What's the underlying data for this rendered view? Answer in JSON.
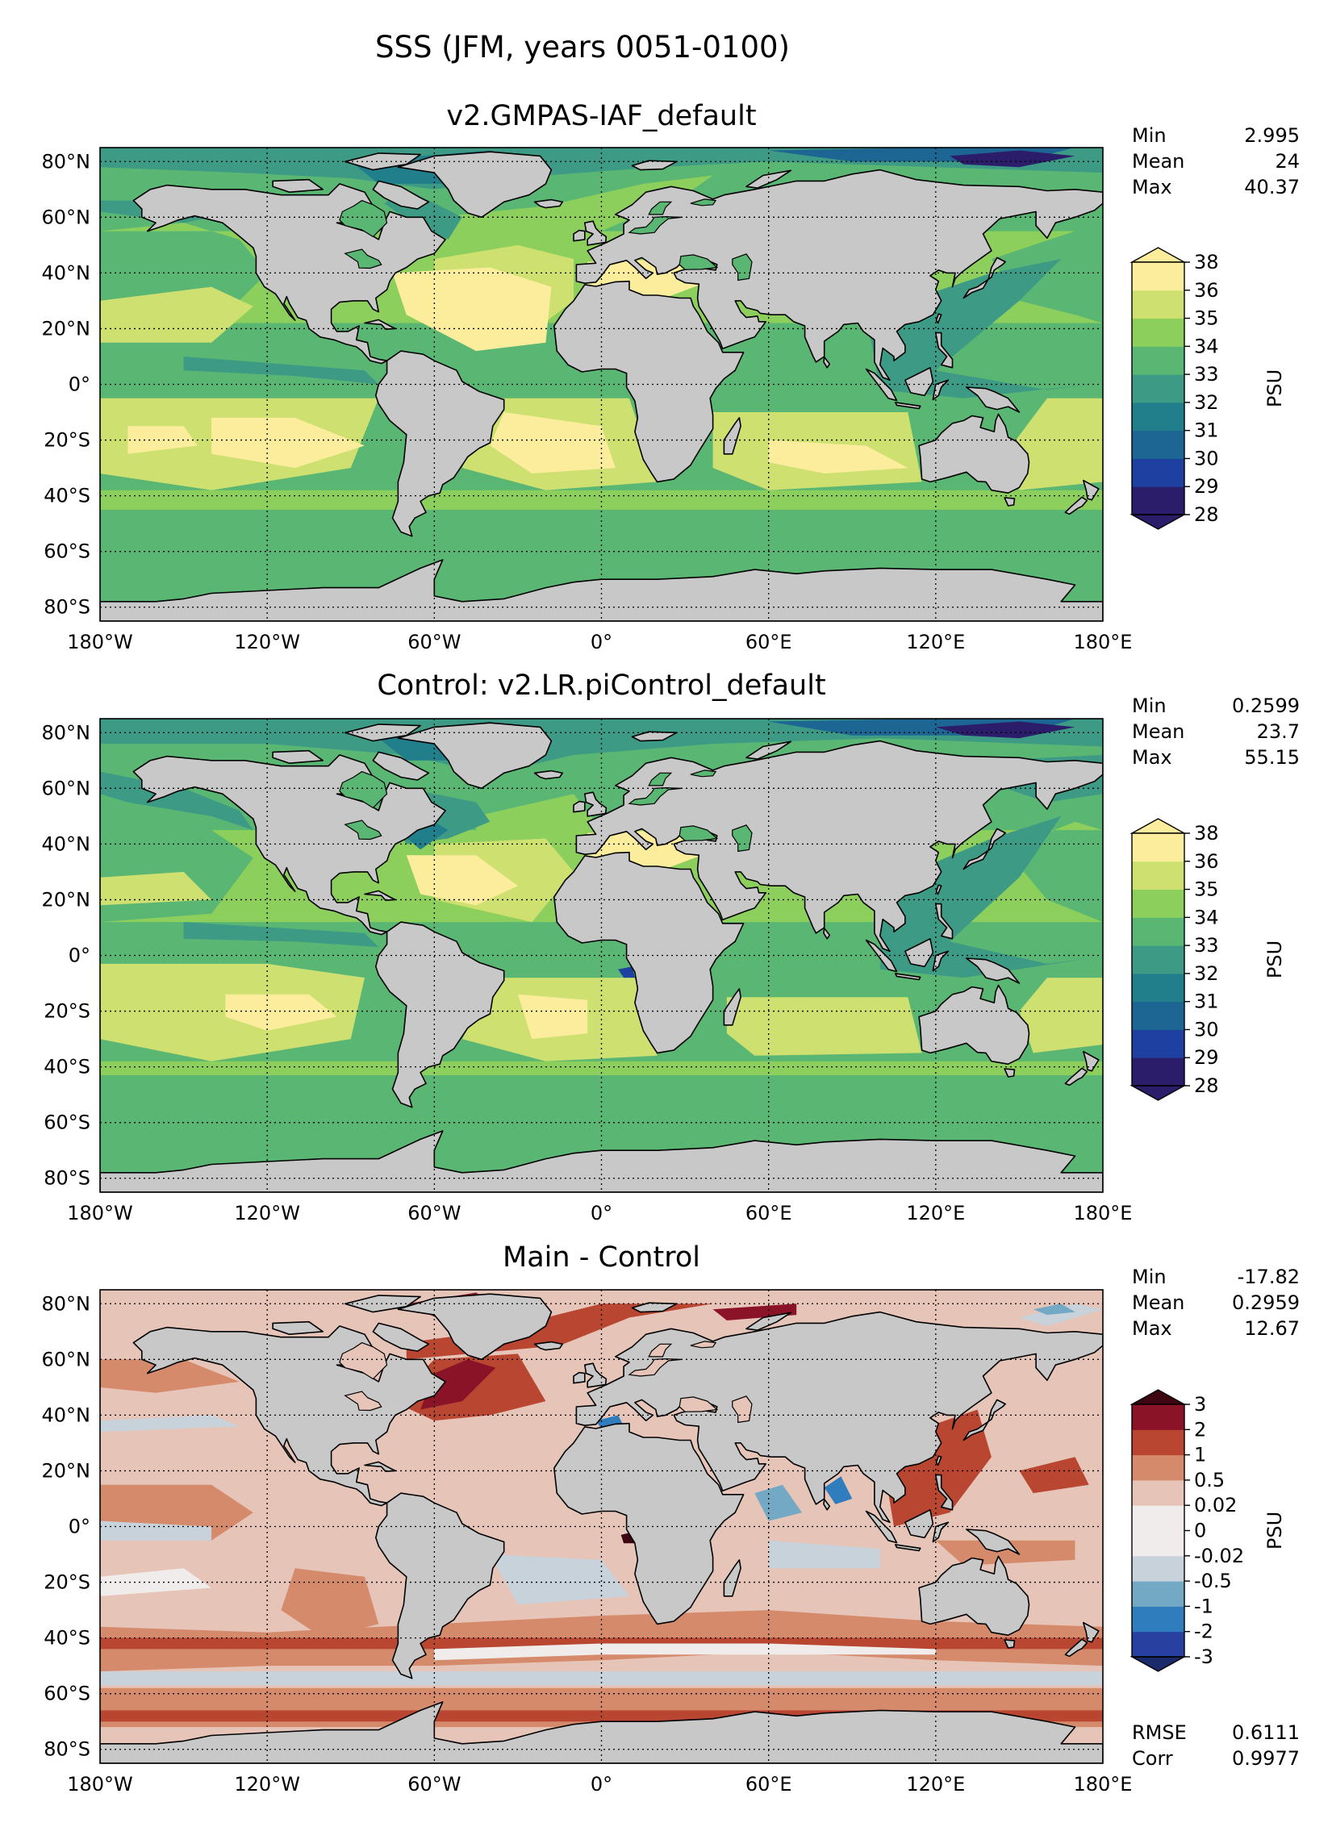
{
  "figure": {
    "suptitle": "SSS (JFM, years 0051-0100)"
  },
  "chart_data": [
    {
      "type": "heatmap",
      "title": "v2.GMPAS-IAF_default",
      "xlim": [
        -180,
        180
      ],
      "ylim": [
        -85,
        85
      ],
      "x_ticks": [
        -180,
        -120,
        -60,
        0,
        60,
        120,
        180
      ],
      "x_tick_labels": [
        "180°W",
        "120°W",
        "60°W",
        "0°",
        "60°E",
        "120°E",
        "180°E"
      ],
      "y_ticks": [
        80,
        60,
        40,
        20,
        0,
        -20,
        -40,
        -60,
        -80
      ],
      "y_tick_labels": [
        "80°N",
        "60°N",
        "40°N",
        "20°N",
        "0°",
        "20°S",
        "40°S",
        "60°S",
        "80°S"
      ],
      "grid": true,
      "stats": [
        {
          "label": "Min",
          "value": "2.995"
        },
        {
          "label": "Mean",
          "value": "24"
        },
        {
          "label": "Max",
          "value": "40.37"
        }
      ],
      "colorbar": {
        "label": "PSU",
        "ticks": [
          "28",
          "29",
          "30",
          "31",
          "32",
          "33",
          "34",
          "35",
          "36",
          "38"
        ],
        "colors": [
          "#2c1d6b",
          "#1e40a0",
          "#1d6592",
          "#217f8c",
          "#3d9a84",
          "#5ab673",
          "#8ccf5c",
          "#cde070",
          "#fbed9b"
        ],
        "extend_min_color": "#2c1d6b",
        "extend_max_color": "#fbed9b"
      }
    },
    {
      "type": "heatmap",
      "title": "Control: v2.LR.piControl_default",
      "xlim": [
        -180,
        180
      ],
      "ylim": [
        -85,
        85
      ],
      "x_ticks": [
        -180,
        -120,
        -60,
        0,
        60,
        120,
        180
      ],
      "x_tick_labels": [
        "180°W",
        "120°W",
        "60°W",
        "0°",
        "60°E",
        "120°E",
        "180°E"
      ],
      "y_ticks": [
        80,
        60,
        40,
        20,
        0,
        -20,
        -40,
        -60,
        -80
      ],
      "y_tick_labels": [
        "80°N",
        "60°N",
        "40°N",
        "20°N",
        "0°",
        "20°S",
        "40°S",
        "60°S",
        "80°S"
      ],
      "grid": true,
      "stats": [
        {
          "label": "Min",
          "value": "0.2599"
        },
        {
          "label": "Mean",
          "value": "23.7"
        },
        {
          "label": "Max",
          "value": "55.15"
        }
      ],
      "colorbar": {
        "label": "PSU",
        "ticks": [
          "28",
          "29",
          "30",
          "31",
          "32",
          "33",
          "34",
          "35",
          "36",
          "38"
        ],
        "colors": [
          "#2c1d6b",
          "#1e40a0",
          "#1d6592",
          "#217f8c",
          "#3d9a84",
          "#5ab673",
          "#8ccf5c",
          "#cde070",
          "#fbed9b"
        ],
        "extend_min_color": "#2c1d6b",
        "extend_max_color": "#fbed9b"
      }
    },
    {
      "type": "heatmap",
      "title": "Main - Control",
      "xlim": [
        -180,
        180
      ],
      "ylim": [
        -85,
        85
      ],
      "x_ticks": [
        -180,
        -120,
        -60,
        0,
        60,
        120,
        180
      ],
      "x_tick_labels": [
        "180°W",
        "120°W",
        "60°W",
        "0°",
        "60°E",
        "120°E",
        "180°E"
      ],
      "y_ticks": [
        80,
        60,
        40,
        20,
        0,
        -20,
        -40,
        -60,
        -80
      ],
      "y_tick_labels": [
        "80°N",
        "60°N",
        "40°N",
        "20°N",
        "0°",
        "20°S",
        "40°S",
        "60°S",
        "80°S"
      ],
      "grid": true,
      "stats": [
        {
          "label": "Min",
          "value": "-17.82"
        },
        {
          "label": "Mean",
          "value": "0.2959"
        },
        {
          "label": "Max",
          "value": "12.67"
        }
      ],
      "extra_stats": [
        {
          "label": "RMSE",
          "value": "0.6111"
        },
        {
          "label": "Corr",
          "value": "0.9977"
        }
      ],
      "colorbar": {
        "label": "PSU",
        "ticks": [
          "-3",
          "-2",
          "-1",
          "-0.5",
          "-0.02",
          "0",
          "0.02",
          "0.5",
          "1",
          "2",
          "3"
        ],
        "colors": [
          "#2841a0",
          "#2f7dbd",
          "#74a9c6",
          "#c7d2db",
          "#f1ecec",
          "#f1ecec",
          "#e6c4b8",
          "#d58a6c",
          "#b84630",
          "#8b1328"
        ],
        "extend_min_color": "#1a2a6b",
        "extend_max_color": "#3e0610"
      }
    }
  ]
}
